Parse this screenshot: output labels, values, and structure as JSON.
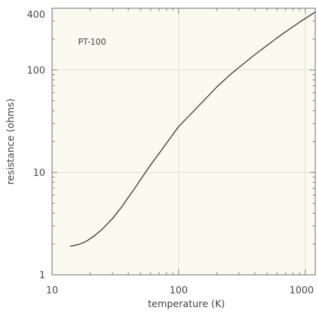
{
  "chart_data": {
    "type": "line",
    "title": "",
    "annotation": "PT-100",
    "xlabel": "temperature (K)",
    "ylabel": "resistance (ohms)",
    "xscale": "log",
    "yscale": "log",
    "xlim": [
      10,
      1200
    ],
    "ylim": [
      1,
      400
    ],
    "xticks": [
      10,
      100,
      1000
    ],
    "xtick_labels": [
      "10",
      "100",
      "1000"
    ],
    "yticks": [
      1,
      10,
      100,
      400
    ],
    "ytick_labels": [
      "1",
      "10",
      "100",
      "400"
    ],
    "grid": true,
    "legend": "none",
    "series": [
      {
        "x": [
          14,
          16,
          18,
          20,
          22,
          25,
          30,
          35,
          40,
          45,
          50,
          60,
          70,
          80,
          100,
          150,
          200,
          250,
          300,
          400,
          500,
          600,
          700,
          800,
          900,
          1000,
          1200
        ],
        "y": [
          1.9,
          1.97,
          2.08,
          2.25,
          2.45,
          2.8,
          3.55,
          4.5,
          5.7,
          7.0,
          8.5,
          11.8,
          15.3,
          19.2,
          28,
          47,
          68,
          88,
          106,
          141,
          174,
          206,
          236,
          264,
          292,
          318,
          368
        ]
      }
    ]
  },
  "colors": {
    "plot_background": "#fbfaf1",
    "grid": "#e4e4cf",
    "axes": "#7a7a7a",
    "line": "#333333",
    "text": "#444444"
  }
}
